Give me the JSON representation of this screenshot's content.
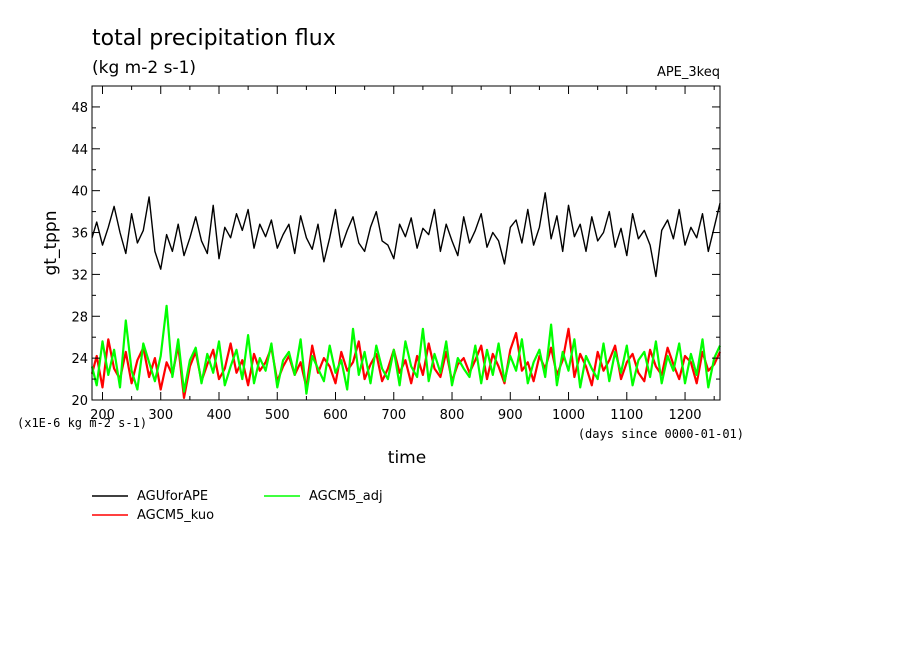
{
  "chart_data": {
    "type": "line",
    "title": "total precipitation flux",
    "units": "(kg m-2 s-1)",
    "run_label": "APE_3keq",
    "ylabel": "gt_tppn",
    "xlabel": "time",
    "y_scale_label": "(x1E-6 kg m-2 s-1)",
    "x_units_label": "(days since 0000-01-01)",
    "xlim": [
      182,
      1260
    ],
    "ylim": [
      20,
      50
    ],
    "x_ticks": [
      200,
      300,
      400,
      500,
      600,
      700,
      800,
      900,
      1000,
      1100,
      1200
    ],
    "y_ticks": [
      20,
      24,
      28,
      32,
      36,
      40,
      44,
      48
    ],
    "x_tick_labels": [
      "200",
      "300",
      "400",
      "500",
      "600",
      "700",
      "800",
      "900",
      "1000",
      "1100",
      "1200"
    ],
    "y_tick_labels": [
      "20",
      "24",
      "28",
      "32",
      "36",
      "40",
      "44",
      "48"
    ],
    "grid": false,
    "legend_position": "bottom-left",
    "series": [
      {
        "name": "AGUforAPE",
        "color": "#000000",
        "x": [
          182,
          190,
          200,
          210,
          220,
          230,
          240,
          250,
          260,
          270,
          280,
          290,
          300,
          310,
          320,
          330,
          340,
          350,
          360,
          370,
          380,
          390,
          400,
          410,
          420,
          430,
          440,
          450,
          460,
          470,
          480,
          490,
          500,
          510,
          520,
          530,
          540,
          550,
          560,
          570,
          580,
          590,
          600,
          610,
          620,
          630,
          640,
          650,
          660,
          670,
          680,
          690,
          700,
          710,
          720,
          730,
          740,
          750,
          760,
          770,
          780,
          790,
          800,
          810,
          820,
          830,
          840,
          850,
          860,
          870,
          880,
          890,
          900,
          910,
          920,
          930,
          940,
          950,
          960,
          970,
          980,
          990,
          1000,
          1010,
          1020,
          1030,
          1040,
          1050,
          1060,
          1070,
          1080,
          1090,
          1100,
          1110,
          1120,
          1130,
          1140,
          1150,
          1160,
          1170,
          1180,
          1190,
          1200,
          1210,
          1220,
          1230,
          1240,
          1250,
          1260
        ],
        "y": [
          35.5,
          37,
          34.8,
          36.5,
          38.5,
          36,
          34,
          37.8,
          35,
          36.2,
          39.4,
          34.2,
          32.5,
          35.8,
          34.2,
          36.8,
          33.8,
          35.5,
          37.5,
          35.2,
          34,
          38.6,
          33.5,
          36.5,
          35.5,
          37.8,
          36.2,
          38.2,
          34.5,
          36.8,
          35.6,
          37.2,
          34.5,
          35.8,
          36.8,
          34,
          37.6,
          35.5,
          34.4,
          36.8,
          33.2,
          35.5,
          38.2,
          34.6,
          36.2,
          37.5,
          35,
          34.2,
          36.5,
          38,
          35.2,
          34.8,
          33.5,
          36.8,
          35.6,
          37.4,
          34.5,
          36.4,
          35.8,
          38.2,
          34.2,
          36.8,
          35.2,
          33.8,
          37.5,
          35,
          36.2,
          37.8,
          34.6,
          36,
          35.2,
          33,
          36.5,
          37.2,
          35,
          38.2,
          34.8,
          36.5,
          39.8,
          35.4,
          37.6,
          34.2,
          38.6,
          35.6,
          36.8,
          34.2,
          37.5,
          35.2,
          36,
          38,
          34.6,
          36.4,
          33.8,
          37.8,
          35.4,
          36.2,
          34.8,
          31.8,
          36.2,
          37.2,
          35.4,
          38.2,
          34.8,
          36.5,
          35.5,
          37.8,
          34.2,
          36.5,
          38.8
        ]
      },
      {
        "name": "AGCM5_kuo",
        "color": "#ff0000",
        "x": [
          182,
          190,
          200,
          210,
          220,
          230,
          240,
          250,
          260,
          270,
          280,
          290,
          300,
          310,
          320,
          330,
          340,
          350,
          360,
          370,
          380,
          390,
          400,
          410,
          420,
          430,
          440,
          450,
          460,
          470,
          480,
          490,
          500,
          510,
          520,
          530,
          540,
          550,
          560,
          570,
          580,
          590,
          600,
          610,
          620,
          630,
          640,
          650,
          660,
          670,
          680,
          690,
          700,
          710,
          720,
          730,
          740,
          750,
          760,
          770,
          780,
          790,
          800,
          810,
          820,
          830,
          840,
          850,
          860,
          870,
          880,
          890,
          900,
          910,
          920,
          930,
          940,
          950,
          960,
          970,
          980,
          990,
          1000,
          1010,
          1020,
          1030,
          1040,
          1050,
          1060,
          1070,
          1080,
          1090,
          1100,
          1110,
          1120,
          1130,
          1140,
          1150,
          1160,
          1170,
          1180,
          1190,
          1200,
          1210,
          1220,
          1230,
          1240,
          1250,
          1260
        ],
        "y": [
          22.5,
          24.2,
          21.2,
          25.8,
          23,
          22,
          24.6,
          21.6,
          23.8,
          25,
          22.2,
          24,
          21,
          23.6,
          22.4,
          25.2,
          20.2,
          23.2,
          24.6,
          21.8,
          23.4,
          24.8,
          22,
          23,
          25.4,
          22.6,
          23.8,
          21.4,
          24.4,
          22.8,
          23.6,
          25,
          21.8,
          23.2,
          24.2,
          22.4,
          23.6,
          21.2,
          25.2,
          22.6,
          24,
          23.2,
          21.6,
          24.6,
          22.8,
          23.6,
          25.6,
          22,
          23.4,
          24.4,
          21.8,
          23,
          24.8,
          22.6,
          23.8,
          21.6,
          24.2,
          22.4,
          25.4,
          23,
          22.2,
          24.6,
          21.8,
          23.4,
          24,
          22.6,
          23.8,
          25.2,
          22,
          24.4,
          23.2,
          21.6,
          24.8,
          26.4,
          22.8,
          23.6,
          21.8,
          24.2,
          23,
          25,
          22.4,
          23.8,
          26.8,
          22.2,
          24.4,
          23.2,
          21.4,
          24.6,
          22.8,
          23.8,
          25.2,
          22,
          23.6,
          24.4,
          22.6,
          21.8,
          24.8,
          23.2,
          22.4,
          25,
          23.4,
          22,
          24.2,
          23.6,
          21.6,
          24.6,
          22.8,
          23.4,
          24.6
        ]
      },
      {
        "name": "AGCM5_adj",
        "color": "#00ff00",
        "x": [
          182,
          190,
          200,
          210,
          220,
          230,
          240,
          250,
          260,
          270,
          280,
          290,
          300,
          310,
          320,
          330,
          340,
          350,
          360,
          370,
          380,
          390,
          400,
          410,
          420,
          430,
          440,
          450,
          460,
          470,
          480,
          490,
          500,
          510,
          520,
          530,
          540,
          550,
          560,
          570,
          580,
          590,
          600,
          610,
          620,
          630,
          640,
          650,
          660,
          670,
          680,
          690,
          700,
          710,
          720,
          730,
          740,
          750,
          760,
          770,
          780,
          790,
          800,
          810,
          820,
          830,
          840,
          850,
          860,
          870,
          880,
          890,
          900,
          910,
          920,
          930,
          940,
          950,
          960,
          970,
          980,
          990,
          1000,
          1010,
          1020,
          1030,
          1040,
          1050,
          1060,
          1070,
          1080,
          1090,
          1100,
          1110,
          1120,
          1130,
          1140,
          1150,
          1160,
          1170,
          1180,
          1190,
          1200,
          1210,
          1220,
          1230,
          1240,
          1250,
          1260
        ],
        "y": [
          23.2,
          21.4,
          25.6,
          22.4,
          24.8,
          21.2,
          27.6,
          22.8,
          21,
          25.4,
          23.6,
          21.8,
          24.2,
          29,
          22.2,
          25.8,
          20.8,
          23.8,
          25,
          21.6,
          24.4,
          22.6,
          25.6,
          21.4,
          23.2,
          24.8,
          22,
          26.2,
          21.6,
          24,
          22.8,
          25.4,
          21.2,
          23.8,
          24.6,
          22.4,
          25.8,
          20.6,
          24.2,
          23,
          21.8,
          25.2,
          22.6,
          23.8,
          21,
          26.8,
          22.4,
          24.6,
          21.6,
          25.2,
          23,
          22,
          24.8,
          21.4,
          25.6,
          23.2,
          22.2,
          26.8,
          21.8,
          24.4,
          22.6,
          25.6,
          21.4,
          24,
          23,
          22.2,
          25.2,
          21.6,
          24.8,
          22.4,
          25.4,
          21.8,
          24.2,
          22.8,
          25.8,
          21.6,
          23.6,
          24.8,
          22.2,
          27.2,
          21.4,
          24.6,
          22.8,
          25.8,
          21.2,
          24.2,
          23,
          22,
          25.4,
          21.8,
          24.6,
          22.6,
          25.2,
          21.4,
          23.8,
          24.6,
          22.2,
          25.6,
          21.6,
          24.2,
          22.8,
          25.4,
          21.6,
          24.4,
          22.4,
          25.8,
          21.2,
          24,
          25.2
        ]
      }
    ]
  }
}
